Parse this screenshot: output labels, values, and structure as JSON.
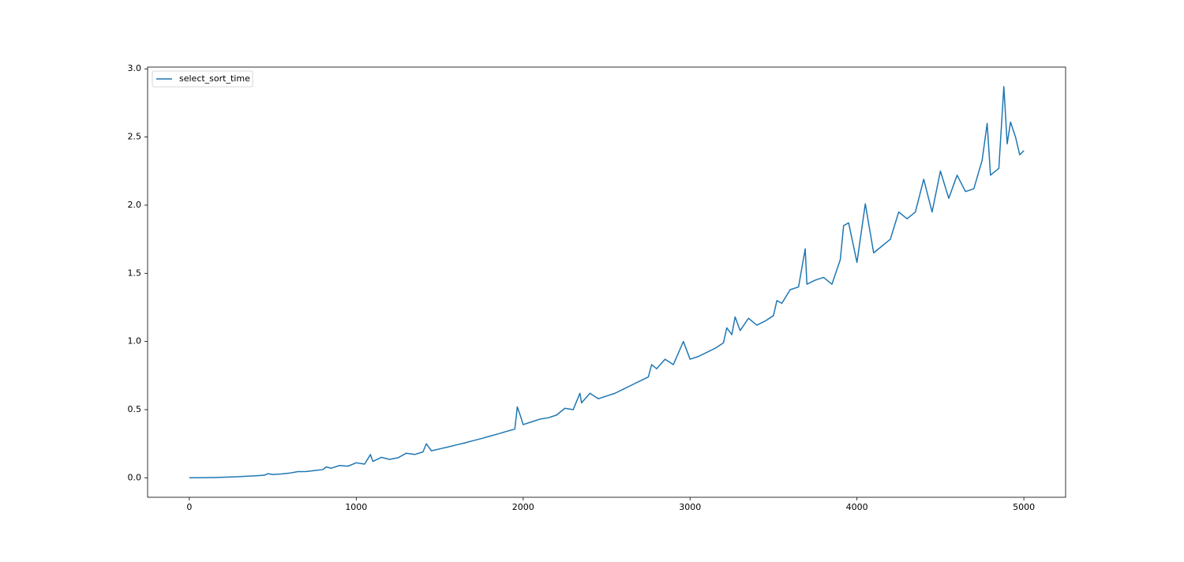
{
  "chart_data": {
    "type": "line",
    "x": [
      0,
      50,
      100,
      150,
      200,
      250,
      300,
      350,
      400,
      450,
      470,
      500,
      550,
      600,
      650,
      700,
      750,
      800,
      820,
      850,
      900,
      950,
      1000,
      1050,
      1085,
      1100,
      1150,
      1200,
      1250,
      1300,
      1350,
      1400,
      1420,
      1450,
      1500,
      1550,
      1600,
      1650,
      1700,
      1750,
      1800,
      1850,
      1900,
      1950,
      1965,
      1985,
      2000,
      2050,
      2100,
      2150,
      2200,
      2250,
      2300,
      2340,
      2350,
      2400,
      2450,
      2500,
      2550,
      2600,
      2650,
      2700,
      2750,
      2770,
      2800,
      2850,
      2900,
      2960,
      3000,
      3050,
      3100,
      3150,
      3200,
      3220,
      3250,
      3270,
      3300,
      3350,
      3400,
      3450,
      3500,
      3520,
      3550,
      3600,
      3650,
      3690,
      3700,
      3750,
      3800,
      3850,
      3900,
      3920,
      3950,
      4000,
      4050,
      4100,
      4150,
      4200,
      4250,
      4300,
      4350,
      4400,
      4450,
      4500,
      4550,
      4600,
      4650,
      4700,
      4750,
      4780,
      4800,
      4850,
      4880,
      4900,
      4920,
      4950,
      4975,
      5000
    ],
    "series": [
      {
        "name": "select_sort_time",
        "color": "#1f77b4",
        "values": [
          0,
          0.0002,
          0.0009,
          0.002,
          0.004,
          0.006,
          0.008,
          0.012,
          0.015,
          0.019,
          0.03,
          0.024,
          0.028,
          0.034,
          0.045,
          0.046,
          0.053,
          0.06,
          0.08,
          0.07,
          0.09,
          0.085,
          0.11,
          0.1,
          0.17,
          0.12,
          0.15,
          0.135,
          0.147,
          0.18,
          0.171,
          0.19,
          0.25,
          0.198,
          0.212,
          0.226,
          0.241,
          0.256,
          0.272,
          0.288,
          0.305,
          0.322,
          0.34,
          0.357,
          0.52,
          0.45,
          0.39,
          0.41,
          0.43,
          0.44,
          0.46,
          0.51,
          0.5,
          0.62,
          0.55,
          0.62,
          0.58,
          0.6,
          0.62,
          0.65,
          0.68,
          0.71,
          0.74,
          0.83,
          0.8,
          0.87,
          0.83,
          1.0,
          0.87,
          0.89,
          0.92,
          0.95,
          0.99,
          1.1,
          1.05,
          1.18,
          1.08,
          1.17,
          1.12,
          1.15,
          1.19,
          1.3,
          1.28,
          1.38,
          1.4,
          1.68,
          1.42,
          1.45,
          1.47,
          1.42,
          1.6,
          1.85,
          1.87,
          1.58,
          2.01,
          1.65,
          1.7,
          1.75,
          1.95,
          1.9,
          1.95,
          2.19,
          1.95,
          2.25,
          2.05,
          2.22,
          2.1,
          2.12,
          2.33,
          2.6,
          2.22,
          2.27,
          2.87,
          2.45,
          2.61,
          2.5,
          2.37,
          2.4
        ]
      }
    ],
    "xlim": [
      -250,
      5250
    ],
    "ylim": [
      -0.143,
      3.013
    ],
    "xticks": [
      0,
      1000,
      2000,
      3000,
      4000,
      5000
    ],
    "yticks": [
      {
        "value": 0,
        "label": "0.0"
      },
      0.5,
      {
        "value": 1,
        "label": "1.0"
      },
      1.5,
      {
        "value": 2,
        "label": "2.0"
      },
      2.5,
      {
        "value": 3,
        "label": "3.0"
      }
    ],
    "legend": "upper left",
    "grid": false
  }
}
